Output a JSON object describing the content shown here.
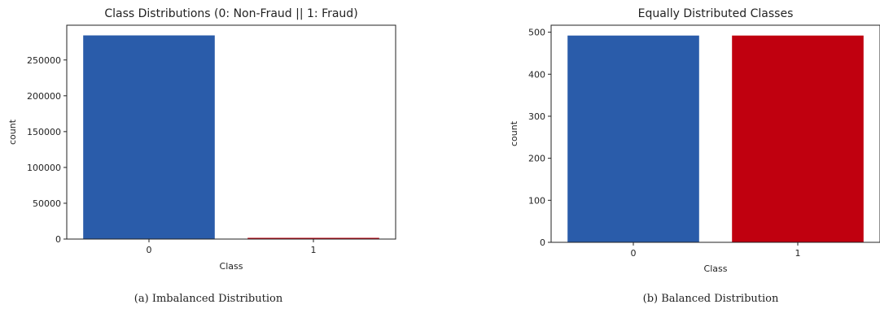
{
  "chart_data": [
    {
      "type": "bar",
      "title": "Class Distributions (0: Non-Fraud || 1: Fraud)",
      "xlabel": "Class",
      "ylabel": "count",
      "categories": [
        "0",
        "1"
      ],
      "values": [
        284315,
        492
      ],
      "colors": [
        "#2a5caa",
        "#c0000f"
      ],
      "ylim": [
        0,
        298531
      ],
      "yticks": [
        0,
        50000,
        100000,
        150000,
        200000,
        250000
      ],
      "caption": "(a) Imbalanced Distribution"
    },
    {
      "type": "bar",
      "title": "Equally Distributed Classes",
      "xlabel": "Class",
      "ylabel": "count",
      "categories": [
        "0",
        "1"
      ],
      "values": [
        492,
        492
      ],
      "colors": [
        "#2a5caa",
        "#c0000f"
      ],
      "ylim": [
        0,
        516.6
      ],
      "yticks": [
        0,
        100,
        200,
        300,
        400,
        500
      ],
      "caption": "(b) Balanced Distribution"
    }
  ]
}
